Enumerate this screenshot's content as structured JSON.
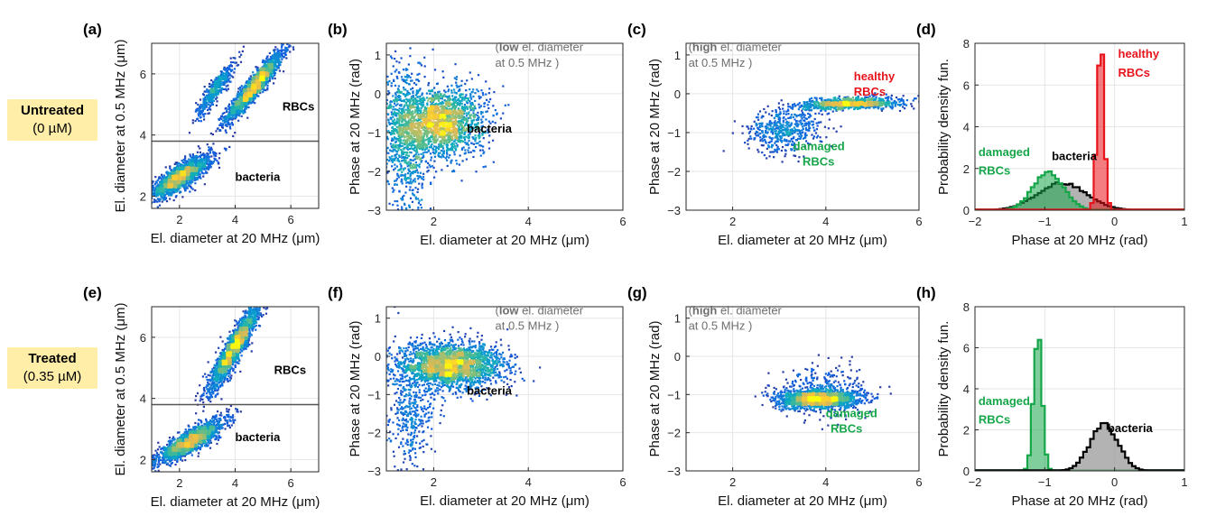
{
  "conditions": [
    {
      "title": "Untreated",
      "conc": "(0 µM)"
    },
    {
      "title": "Treated",
      "conc": "(0.35 µM)"
    }
  ],
  "colors": {
    "black": "#000000",
    "red": "#e8141c",
    "green": "#16a64a",
    "gray": "#6e6e6e",
    "scatter_low": "#2a2ad6",
    "scatter_high": "#f4e62a"
  },
  "chart_data": [
    {
      "panel": "(a)",
      "type": "scatter",
      "xlabel": "El. diameter at 20 MHz (μm)",
      "ylabel": "El. diameter at 0.5 MHz (μm)",
      "xlim": [
        1,
        7
      ],
      "ylim": [
        1.6,
        7
      ],
      "xticks": [
        2,
        4,
        6
      ],
      "yticks": [
        2,
        4,
        6
      ],
      "threshold_y": 3.8,
      "annotations": [
        {
          "text": "RBCs",
          "x": 5.7,
          "y": 4.8,
          "color": "black",
          "bold": true
        },
        {
          "text": "bacteria",
          "x": 4.0,
          "y": 2.5,
          "color": "black",
          "bold": true
        }
      ],
      "clusters": [
        {
          "name": "RBCs main",
          "cx": 4.7,
          "cy": 5.6,
          "sx": 0.5,
          "sy": 0.55,
          "rho": 0.93,
          "n": 1800
        },
        {
          "name": "RBCs secondary",
          "cx": 3.3,
          "cy": 5.5,
          "sx": 0.35,
          "sy": 0.45,
          "rho": 0.9,
          "n": 450
        },
        {
          "name": "bacteria",
          "cx": 2.0,
          "cy": 2.6,
          "sx": 0.55,
          "sy": 0.35,
          "rho": 0.82,
          "n": 1700
        }
      ]
    },
    {
      "panel": "(b)",
      "type": "scatter",
      "xlabel": "El. diameter at 20 MHz (μm)",
      "ylabel": "Phase at 20 MHz (rad)",
      "xlim": [
        1,
        6
      ],
      "ylim": [
        -3,
        1.3
      ],
      "xticks": [
        2,
        4,
        6
      ],
      "yticks": [
        -3,
        -2,
        -1,
        0,
        1
      ],
      "annotations": [
        {
          "text": "(low el. diameter",
          "x": 3.3,
          "y": 1.1,
          "color": "gray",
          "bold_prefix": "low"
        },
        {
          "text": "at 0.5 MHz )",
          "x": 3.3,
          "y": 0.7,
          "color": "gray"
        },
        {
          "text": "bacteria",
          "x": 2.7,
          "y": -1.0,
          "color": "black",
          "bold": true
        }
      ],
      "clusters": [
        {
          "name": "bacteria core",
          "cx": 2.1,
          "cy": -0.75,
          "sx": 0.5,
          "sy": 0.45,
          "rho": 0.1,
          "n": 2000
        },
        {
          "name": "bacteria tail",
          "cx": 1.4,
          "cy": -1.2,
          "sx": 0.25,
          "sy": 1.1,
          "rho": 0.0,
          "n": 700
        }
      ]
    },
    {
      "panel": "(c)",
      "type": "scatter",
      "xlabel": "El. diameter at 20 MHz (μm)",
      "ylabel": "Phase at 20 MHz (rad)",
      "xlim": [
        1,
        6
      ],
      "ylim": [
        -3,
        1.3
      ],
      "xticks": [
        2,
        4,
        6
      ],
      "yticks": [
        -3,
        -2,
        -1,
        0,
        1
      ],
      "annotations": [
        {
          "text": "(high el. diameter",
          "x": 1.05,
          "y": 1.1,
          "color": "gray",
          "bold_prefix": "high"
        },
        {
          "text": "at 0.5 MHz )",
          "x": 1.05,
          "y": 0.7,
          "color": "gray"
        },
        {
          "text": "healthy",
          "x": 4.6,
          "y": 0.35,
          "color": "red",
          "bold": true
        },
        {
          "text": "RBCs",
          "x": 4.6,
          "y": -0.05,
          "color": "red",
          "bold": true
        },
        {
          "text": "damaged",
          "x": 3.3,
          "y": -1.45,
          "color": "green",
          "bold": true
        },
        {
          "text": "RBCs",
          "x": 3.5,
          "y": -1.85,
          "color": "green",
          "bold": true
        }
      ],
      "clusters": [
        {
          "name": "healthy RBCs",
          "cx": 4.55,
          "cy": -0.25,
          "sx": 0.55,
          "sy": 0.08,
          "rho": 0.3,
          "n": 900
        },
        {
          "name": "damaged RBCs",
          "cx": 3.1,
          "cy": -0.95,
          "sx": 0.4,
          "sy": 0.28,
          "rho": 0.1,
          "n": 500
        }
      ]
    },
    {
      "panel": "(d)",
      "type": "area",
      "xlabel": "Phase at 20 MHz (rad)",
      "ylabel": "Probability density fun.",
      "xlim": [
        -2,
        1
      ],
      "ylim": [
        0,
        8
      ],
      "xticks": [
        -2,
        -1,
        0,
        1
      ],
      "yticks": [
        0,
        2,
        4,
        6,
        8
      ],
      "annotations": [
        {
          "text": "healthy",
          "x": 0.05,
          "y": 7.3,
          "color": "red",
          "bold": true
        },
        {
          "text": "RBCs",
          "x": 0.05,
          "y": 6.4,
          "color": "red",
          "bold": true
        },
        {
          "text": "damaged",
          "x": -1.95,
          "y": 2.6,
          "color": "green",
          "bold": true
        },
        {
          "text": "RBCs",
          "x": -1.95,
          "y": 1.7,
          "color": "green",
          "bold": true
        },
        {
          "text": "bacteria",
          "x": -0.9,
          "y": 2.4,
          "color": "black",
          "bold": true
        }
      ],
      "series": [
        {
          "name": "bacteria",
          "color": "black",
          "fill": "gray",
          "mu": -0.75,
          "sigma": 0.35,
          "peak": 1.3
        },
        {
          "name": "damaged RBCs",
          "color": "green",
          "fill": "green",
          "mu": -0.95,
          "sigma": 0.22,
          "peak": 1.8
        },
        {
          "name": "healthy RBCs",
          "color": "red",
          "fill": "red",
          "mu": -0.2,
          "sigma": 0.05,
          "peak": 8.0
        }
      ]
    },
    {
      "panel": "(e)",
      "type": "scatter",
      "xlabel": "El. diameter at 20 MHz (μm)",
      "ylabel": "El. diameter at 0.5 MHz (μm)",
      "xlim": [
        1,
        7
      ],
      "ylim": [
        1.6,
        7
      ],
      "xticks": [
        2,
        4,
        6
      ],
      "yticks": [
        2,
        4,
        6
      ],
      "threshold_y": 3.8,
      "annotations": [
        {
          "text": "RBCs",
          "x": 5.4,
          "y": 4.8,
          "color": "black",
          "bold": true
        },
        {
          "text": "bacteria",
          "x": 4.0,
          "y": 2.6,
          "color": "black",
          "bold": true
        }
      ],
      "clusters": [
        {
          "name": "RBCs",
          "cx": 4.0,
          "cy": 5.7,
          "sx": 0.45,
          "sy": 0.7,
          "rho": 0.92,
          "n": 2000
        },
        {
          "name": "bacteria",
          "cx": 2.4,
          "cy": 2.6,
          "sx": 0.6,
          "sy": 0.35,
          "rho": 0.85,
          "n": 1700
        }
      ]
    },
    {
      "panel": "(f)",
      "type": "scatter",
      "xlabel": "El. diameter at 20 MHz (μm)",
      "ylabel": "Phase at 20 MHz (rad)",
      "xlim": [
        1,
        6
      ],
      "ylim": [
        -3,
        1.3
      ],
      "xticks": [
        2,
        4,
        6
      ],
      "yticks": [
        -3,
        -2,
        -1,
        0,
        1
      ],
      "annotations": [
        {
          "text": "(low el. diameter",
          "x": 3.3,
          "y": 1.1,
          "color": "gray",
          "bold_prefix": "low"
        },
        {
          "text": "at 0.5 MHz )",
          "x": 3.3,
          "y": 0.7,
          "color": "gray"
        },
        {
          "text": "bacteria",
          "x": 2.7,
          "y": -1.0,
          "color": "black",
          "bold": true
        }
      ],
      "clusters": [
        {
          "name": "bacteria core",
          "cx": 2.4,
          "cy": -0.25,
          "sx": 0.55,
          "sy": 0.3,
          "rho": 0.05,
          "n": 2200
        },
        {
          "name": "bacteria tail",
          "cx": 1.5,
          "cy": -1.3,
          "sx": 0.25,
          "sy": 0.8,
          "rho": 0.0,
          "n": 450
        }
      ]
    },
    {
      "panel": "(g)",
      "type": "scatter",
      "xlabel": "El. diameter at 20 MHz (μm)",
      "ylabel": "Phase at 20 MHz (rad)",
      "xlim": [
        1,
        6
      ],
      "ylim": [
        -3,
        1.3
      ],
      "xticks": [
        2,
        4,
        6
      ],
      "yticks": [
        -3,
        -2,
        -1,
        0,
        1
      ],
      "annotations": [
        {
          "text": "(high el. diameter",
          "x": 1.05,
          "y": 1.1,
          "color": "gray",
          "bold_prefix": "high"
        },
        {
          "text": "at 0.5 MHz )",
          "x": 1.05,
          "y": 0.7,
          "color": "gray"
        },
        {
          "text": "damaged",
          "x": 4.0,
          "y": -1.6,
          "color": "green",
          "bold": true
        },
        {
          "text": "RBCs",
          "x": 4.1,
          "y": -2.0,
          "color": "green",
          "bold": true
        }
      ],
      "clusters": [
        {
          "name": "damaged RBCs",
          "cx": 3.85,
          "cy": -1.12,
          "sx": 0.45,
          "sy": 0.12,
          "rho": 0.1,
          "n": 1400
        },
        {
          "name": "damaged RBCs spread",
          "cx": 3.9,
          "cy": -0.9,
          "sx": 0.5,
          "sy": 0.35,
          "rho": 0.0,
          "n": 350
        }
      ]
    },
    {
      "panel": "(h)",
      "type": "area",
      "xlabel": "Phase at 20 MHz (rad)",
      "ylabel": "Probability density fun.",
      "xlim": [
        -2,
        1
      ],
      "ylim": [
        0,
        8
      ],
      "xticks": [
        -2,
        -1,
        0,
        1
      ],
      "yticks": [
        0,
        2,
        4,
        6,
        8
      ],
      "annotations": [
        {
          "text": "damaged",
          "x": -1.95,
          "y": 3.2,
          "color": "green",
          "bold": true
        },
        {
          "text": "RBCs",
          "x": -1.95,
          "y": 2.3,
          "color": "green",
          "bold": true
        },
        {
          "text": "bacteria",
          "x": -0.1,
          "y": 1.9,
          "color": "black",
          "bold": true
        }
      ],
      "series": [
        {
          "name": "damaged RBCs",
          "color": "green",
          "fill": "green",
          "mu": -1.1,
          "sigma": 0.06,
          "peak": 6.8
        },
        {
          "name": "bacteria",
          "color": "black",
          "fill": "gray",
          "mu": -0.15,
          "sigma": 0.2,
          "peak": 2.3
        }
      ]
    }
  ]
}
